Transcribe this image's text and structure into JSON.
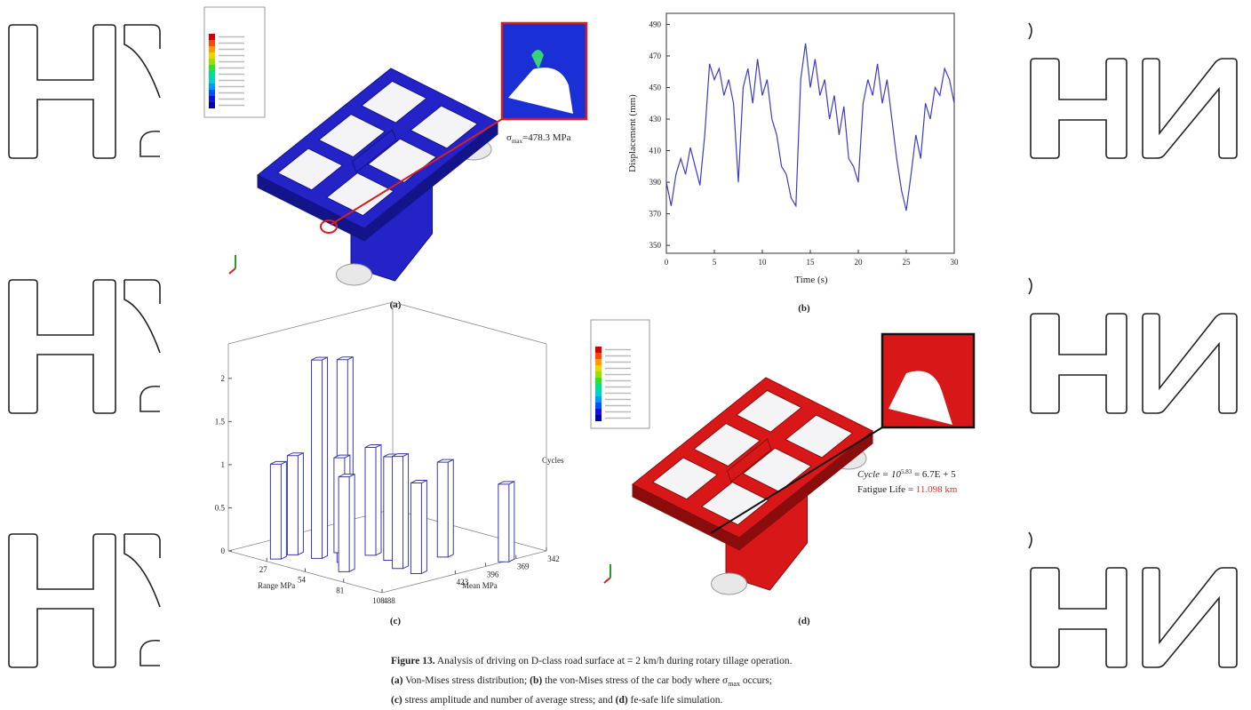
{
  "panels": {
    "a": {
      "label": "(a)",
      "annotation": {
        "symbol": "σ",
        "subscript": "max",
        "text": "=478.3 MPa"
      }
    },
    "b": {
      "label": "(b)",
      "type": "line",
      "xlabel": "Time (s)",
      "ylabel": "Displacement (mm)",
      "color": "#3d3dc4",
      "xlim": [
        0,
        30
      ],
      "xticks": [
        0,
        5,
        10,
        15,
        20,
        25,
        30
      ],
      "ylim": [
        345,
        497
      ],
      "yticks": [
        350,
        370,
        390,
        410,
        430,
        450,
        470,
        490
      ],
      "x": [
        0,
        0.5,
        1,
        1.5,
        2,
        2.5,
        3,
        3.5,
        4,
        4.5,
        5,
        5.5,
        6,
        6.5,
        7,
        7.5,
        8,
        8.5,
        9,
        9.5,
        10,
        10.5,
        11,
        11.5,
        12,
        12.5,
        13,
        13.5,
        14,
        14.5,
        15,
        15.5,
        16,
        16.5,
        17,
        17.5,
        18,
        18.5,
        19,
        19.5,
        20,
        20.5,
        21,
        21.5,
        22,
        22.5,
        23,
        23.5,
        24,
        24.5,
        25,
        25.5,
        26,
        26.5,
        27,
        27.5,
        28,
        28.5,
        29,
        29.5,
        30
      ],
      "values": [
        390,
        375,
        395,
        405,
        395,
        412,
        400,
        388,
        420,
        465,
        455,
        462,
        445,
        455,
        440,
        390,
        450,
        462,
        440,
        468,
        445,
        455,
        430,
        420,
        400,
        395,
        380,
        375,
        455,
        478,
        450,
        468,
        445,
        455,
        430,
        445,
        420,
        438,
        405,
        400,
        390,
        440,
        455,
        445,
        465,
        440,
        455,
        430,
        405,
        385,
        372,
        395,
        420,
        405,
        440,
        430,
        450,
        445,
        462,
        455,
        440
      ]
    },
    "c": {
      "label": "(c)",
      "type": "bar3d",
      "xlabel": "Range MPa",
      "ylabel": "Mean MPa",
      "zlabel": "Cycles",
      "color": "#3a3aa8",
      "xlim": [
        0,
        108
      ],
      "xticks": [
        27,
        54,
        81,
        108
      ],
      "ylim": [
        488,
        342
      ],
      "yticks": [
        488,
        423,
        396,
        369,
        342
      ],
      "zlim": [
        0,
        2.4
      ],
      "zticks": [
        0,
        0.5,
        1,
        1.5,
        2
      ],
      "bars": {
        "range": [
          27,
          27,
          40,
          54,
          40,
          54,
          67,
          81,
          94,
          81,
          108,
          67
        ],
        "mean": [
          480,
          465,
          460,
          455,
          440,
          430,
          430,
          440,
          440,
          400,
          380,
          470
        ],
        "cycles": [
          1.1,
          1.15,
          2.3,
          2.35,
          1.1,
          1.25,
          1.2,
          1.3,
          1.05,
          1.1,
          0.9,
          1.1
        ]
      }
    },
    "d": {
      "label": "(d)",
      "cycle": {
        "text": "Cycle = 10",
        "exponent": "5.83",
        "result": " = 6.7E + 5"
      },
      "life": {
        "text": "Fatigue Life = ",
        "value": "11.098 km"
      }
    }
  },
  "caption": {
    "number": "Figure 13.",
    "line1": " Analysis of driving on D-class road surface at = 2 km/h during rotary tillage operation.",
    "line2": [
      "(a)",
      " Von-Mises stress distribution; ",
      "(b)",
      " the von-Mises stress of the car body where σ",
      "max",
      " occurs;"
    ],
    "line3": [
      "(c)",
      " stress amplitude and number of average stress; and ",
      "(d)",
      " fe-safe life simulation."
    ]
  }
}
